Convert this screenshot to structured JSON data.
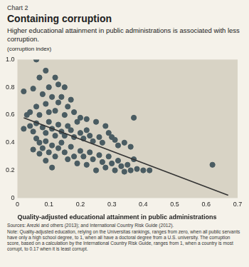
{
  "chart_data": {
    "type": "scatter",
    "chart_label": "Chart 2",
    "title": "Containing corruption",
    "subtitle": "Higher educational attainment in public administrations is associated with less corruption.",
    "y_label": "(corruption index)",
    "x_label": "Quality-adjusted educational attainment in public administrations",
    "sources": "Sources: Arezki and others (2013); and International Country Risk Guide (2012).",
    "note": "Note: Quality-adjusted education, relying on the Universitas rankings, ranges from zero, when all public servants have only a high school degree, to 1, when all have a doctoral degree from a U.S. university. The corruption score, based on a calculation by the International Country Risk Guide, ranges from 1, when a country is most corrupt, to 0.17 when it is least corrupt.",
    "x": [
      0.06,
      0.09,
      0.07,
      0.12,
      0.02,
      0.05,
      0.1,
      0.13,
      0.15,
      0.08,
      0.11,
      0.14,
      0.17,
      0.16,
      0.13,
      0.09,
      0.06,
      0.04,
      0.03,
      0.07,
      0.1,
      0.12,
      0.15,
      0.18,
      0.2,
      0.19,
      0.22,
      0.25,
      0.28,
      0.37,
      0.02,
      0.04,
      0.05,
      0.06,
      0.08,
      0.09,
      0.1,
      0.11,
      0.12,
      0.13,
      0.14,
      0.15,
      0.16,
      0.17,
      0.18,
      0.2,
      0.21,
      0.22,
      0.23,
      0.24,
      0.26,
      0.27,
      0.29,
      0.3,
      0.31,
      0.32,
      0.34,
      0.36,
      0.06,
      0.07,
      0.08,
      0.09,
      0.1,
      0.11,
      0.12,
      0.13,
      0.14,
      0.15,
      0.16,
      0.17,
      0.18,
      0.19,
      0.2,
      0.21,
      0.22,
      0.23,
      0.24,
      0.25,
      0.26,
      0.27,
      0.28,
      0.29,
      0.3,
      0.31,
      0.32,
      0.33,
      0.34,
      0.35,
      0.36,
      0.37,
      0.38,
      0.4,
      0.42,
      0.62,
      0.05,
      0.07,
      0.09,
      0.11
    ],
    "values": [
      1.0,
      0.92,
      0.87,
      0.87,
      0.77,
      0.79,
      0.8,
      0.82,
      0.8,
      0.75,
      0.73,
      0.73,
      0.71,
      0.66,
      0.69,
      0.68,
      0.66,
      0.62,
      0.6,
      0.6,
      0.62,
      0.63,
      0.6,
      0.62,
      0.58,
      0.55,
      0.57,
      0.55,
      0.52,
      0.58,
      0.5,
      0.52,
      0.48,
      0.54,
      0.51,
      0.47,
      0.55,
      0.5,
      0.45,
      0.53,
      0.48,
      0.45,
      0.52,
      0.49,
      0.44,
      0.47,
      0.43,
      0.49,
      0.45,
      0.41,
      0.44,
      0.4,
      0.47,
      0.44,
      0.42,
      0.38,
      0.4,
      0.37,
      0.43,
      0.4,
      0.36,
      0.41,
      0.33,
      0.38,
      0.3,
      0.36,
      0.4,
      0.33,
      0.28,
      0.37,
      0.3,
      0.25,
      0.34,
      0.3,
      0.24,
      0.33,
      0.28,
      0.2,
      0.31,
      0.26,
      0.22,
      0.3,
      0.25,
      0.2,
      0.27,
      0.23,
      0.19,
      0.24,
      0.2,
      0.28,
      0.21,
      0.2,
      0.2,
      0.24,
      0.35,
      0.32,
      0.27,
      0.22
    ],
    "color": "#4a5c62",
    "trend_line": {
      "x": [
        0.02,
        0.67
      ],
      "values": [
        0.58,
        0.02
      ],
      "color": "#333333"
    },
    "xlim": [
      0,
      0.7
    ],
    "xticks": [
      0,
      0.1,
      0.2,
      0.3,
      0.4,
      0.5,
      0.6,
      0.7
    ],
    "ylim": [
      0,
      1
    ],
    "yticks": [
      0,
      0.2,
      0.4,
      0.6,
      0.8,
      {
        "value": 1,
        "label": "1.0"
      }
    ],
    "grid": false
  }
}
